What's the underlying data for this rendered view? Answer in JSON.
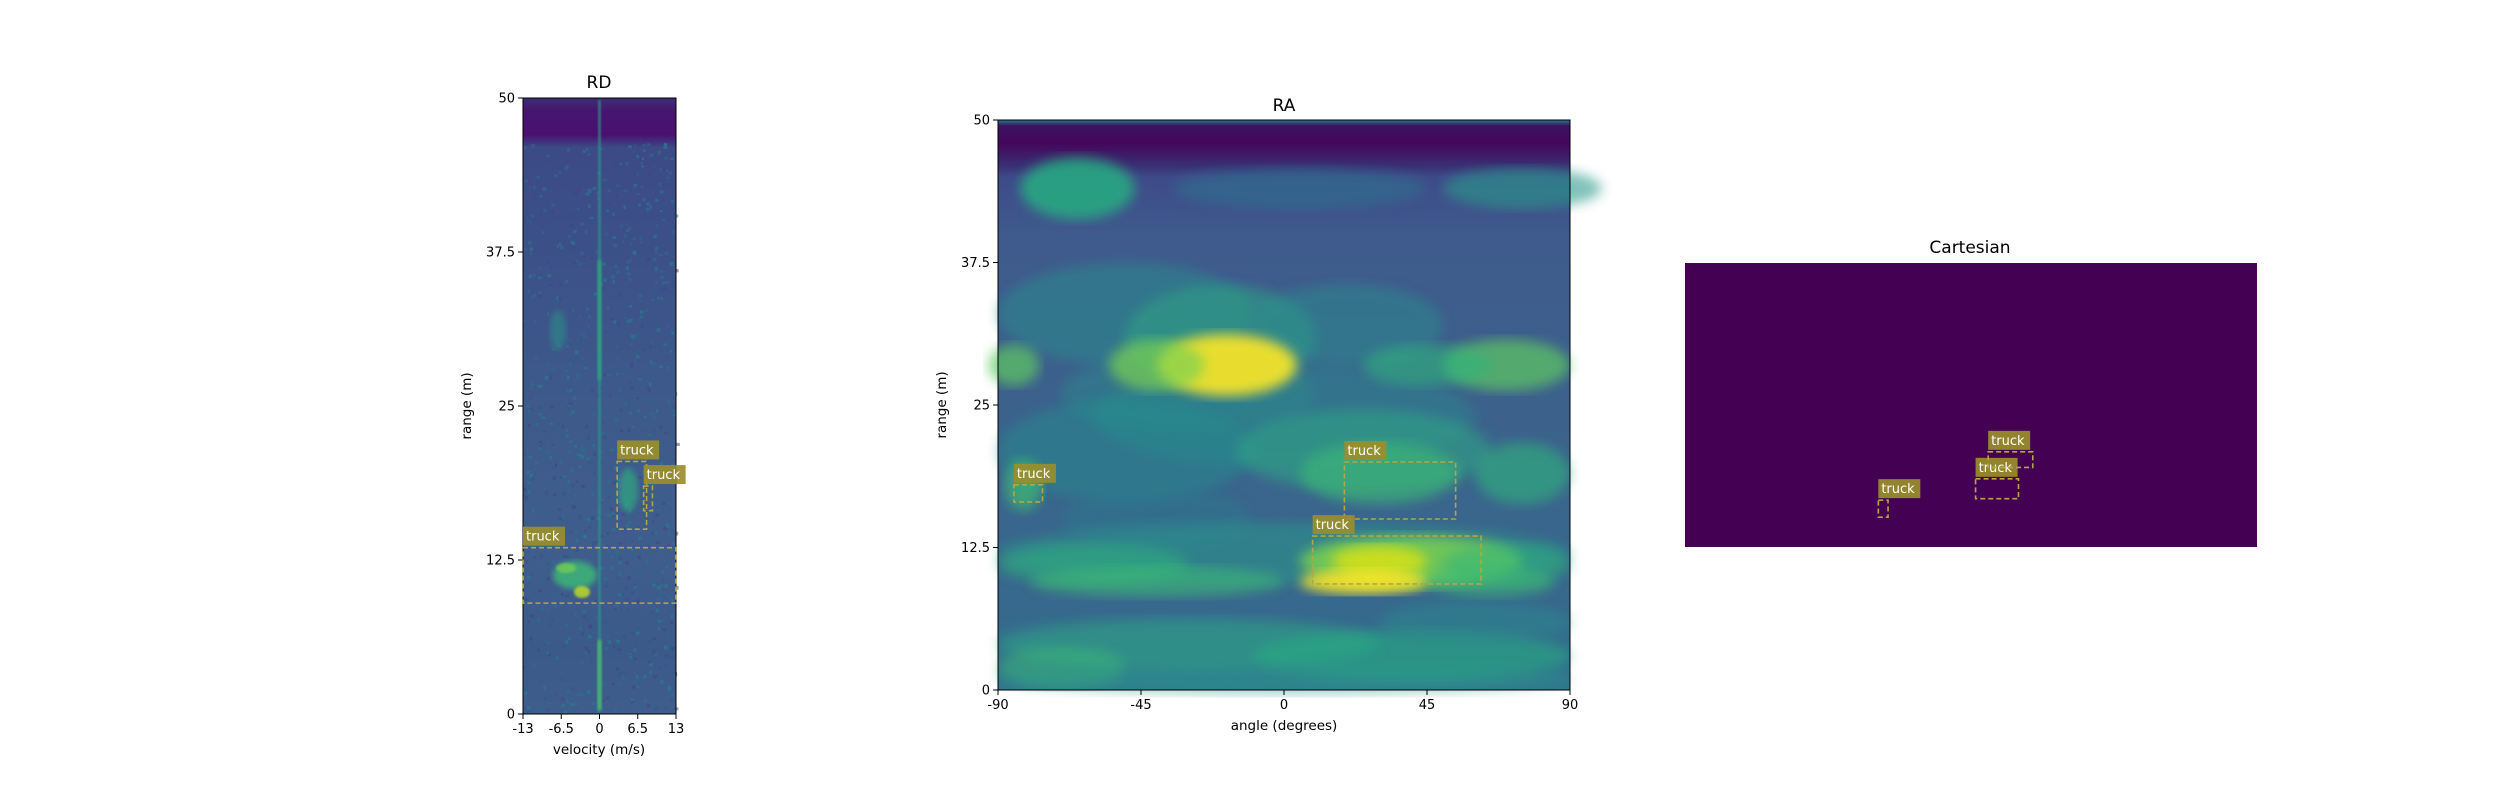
{
  "chart_data": [
    {
      "type": "heatmap",
      "title": "RD",
      "xlabel": "velocity (m/s)",
      "ylabel": "range (m)",
      "xlim": [
        -13,
        13
      ],
      "ylim": [
        0,
        50
      ],
      "xticks": [
        "-13",
        "-6.5",
        "0",
        "6.5",
        "13"
      ],
      "yticks": [
        "0",
        "12.5",
        "25",
        "37.5",
        "50"
      ],
      "colormap": "viridis",
      "annotations": [
        {
          "label": "truck",
          "x0": -13,
          "x1": 13,
          "y0": 9,
          "y1": 13.5
        },
        {
          "label": "truck",
          "x0": 3,
          "x1": 8,
          "y0": 15,
          "y1": 20.5
        },
        {
          "label": "truck",
          "x0": 7.5,
          "x1": 9,
          "y0": 16.5,
          "y1": 18.5
        }
      ]
    },
    {
      "type": "heatmap",
      "title": "RA",
      "xlabel": "angle (degrees)",
      "ylabel": "range (m)",
      "xlim": [
        -90,
        90
      ],
      "ylim": [
        0,
        50
      ],
      "xticks": [
        "-90",
        "-45",
        "0",
        "45",
        "90"
      ],
      "yticks": [
        "0",
        "12.5",
        "25",
        "37.5",
        "50"
      ],
      "colormap": "viridis",
      "annotations": [
        {
          "label": "truck",
          "x0": -85,
          "x1": -76,
          "y0": 16.5,
          "y1": 18
        },
        {
          "label": "truck",
          "x0": 19,
          "x1": 54,
          "y0": 15,
          "y1": 20
        },
        {
          "label": "truck",
          "x0": 9,
          "x1": 62,
          "y0": 9.3,
          "y1": 13.5
        }
      ]
    },
    {
      "type": "heatmap",
      "title": "Cartesian",
      "background": "#440154",
      "annotations": [
        {
          "label": "truck",
          "x0": 0.338,
          "x1": 0.355,
          "y0": 0.105,
          "y1": 0.165
        },
        {
          "label": "truck",
          "x0": 0.508,
          "x1": 0.583,
          "y0": 0.17,
          "y1": 0.24
        },
        {
          "label": "truck",
          "x0": 0.53,
          "x1": 0.608,
          "y0": 0.28,
          "y1": 0.335
        }
      ]
    }
  ],
  "colors": {
    "viridis_dark": "#440154",
    "viridis_blue": "#3b528b",
    "viridis_teal": "#21918c",
    "viridis_green": "#5ec962",
    "viridis_yellow": "#fde725",
    "box": "#b5a642",
    "label_bg": "#9a8e2c"
  }
}
